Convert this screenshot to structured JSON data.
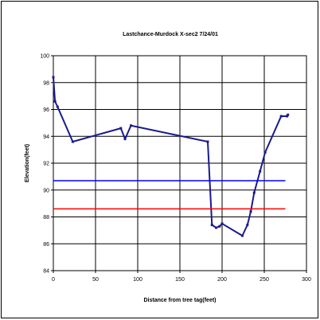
{
  "chart_data": {
    "type": "line",
    "title": "Lastchance-Murdock X-sec2 7/24/01",
    "xlabel": "Distance from tree tag(feet)",
    "ylabel": "Elevation(feet)",
    "xlim": [
      0,
      300
    ],
    "ylim": [
      84,
      100
    ],
    "xticks": [
      "0",
      "50",
      "100",
      "150",
      "200",
      "250",
      "300"
    ],
    "yticks": [
      "84",
      "86",
      "88",
      "90",
      "92",
      "94",
      "96",
      "98",
      "100"
    ],
    "grid": true,
    "legend": "none",
    "series": [
      {
        "color": "#1a1a8c",
        "marker": "square",
        "x": [
          0,
          2,
          5,
          23,
          80,
          85,
          92,
          183,
          188,
          193,
          197,
          200,
          224,
          230,
          234,
          238,
          245,
          251,
          270,
          277,
          278
        ],
        "y": [
          98.4,
          96.6,
          96.2,
          93.6,
          94.6,
          93.8,
          94.8,
          93.6,
          87.4,
          87.2,
          87.3,
          87.5,
          86.6,
          87.4,
          88.4,
          89.8,
          91.4,
          92.8,
          95.5,
          95.5,
          95.6
        ]
      },
      {
        "color": "#0000ff",
        "marker": "none",
        "x": [
          0,
          275
        ],
        "y": [
          90.7,
          90.7
        ]
      },
      {
        "color": "#ff0000",
        "marker": "none",
        "x": [
          0,
          275
        ],
        "y": [
          88.6,
          88.6
        ]
      }
    ]
  }
}
